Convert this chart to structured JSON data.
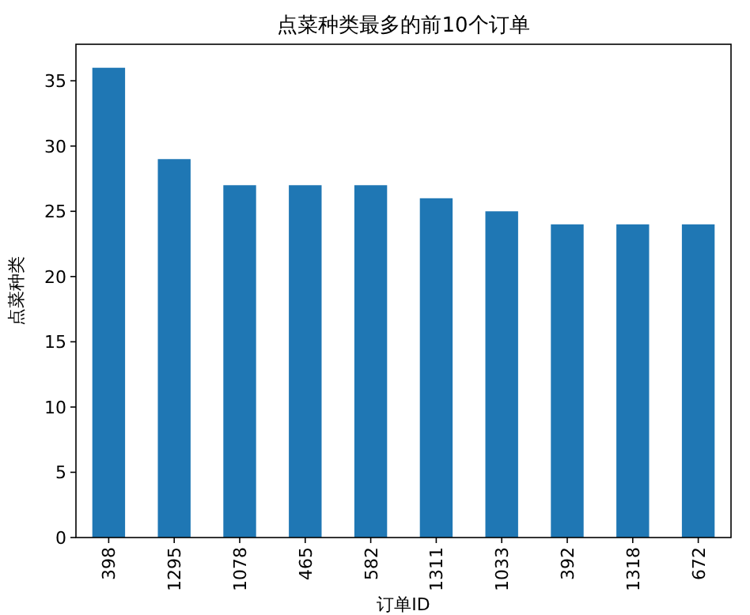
{
  "chart_data": {
    "type": "bar",
    "title": "点菜种类最多的前10个订单",
    "xlabel": "订单ID",
    "ylabel": "点菜种类",
    "categories": [
      "398",
      "1295",
      "1078",
      "465",
      "582",
      "1311",
      "1033",
      "392",
      "1318",
      "672"
    ],
    "values": [
      36,
      29,
      27,
      27,
      27,
      26,
      25,
      24,
      24,
      24
    ],
    "color": "#1f77b4",
    "ylim": [
      0,
      37.8
    ],
    "yticks": [
      0,
      5,
      10,
      15,
      20,
      25,
      30,
      35
    ],
    "grid": false
  }
}
